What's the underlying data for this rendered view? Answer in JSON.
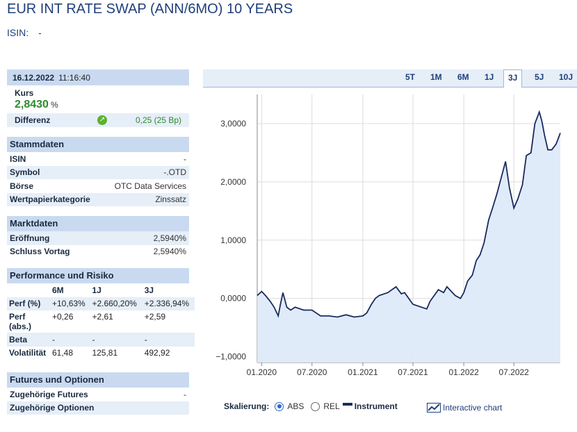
{
  "header": {
    "title": "EUR INT RATE SWAP (ANN/6MO) 10 YEARS",
    "isin_label": "ISIN:",
    "isin_value": "-"
  },
  "quote": {
    "date": "16.12.2022",
    "time": "11:16:40",
    "kurs_label": "Kurs",
    "kurs_value": "2,8430",
    "kurs_unit": "%",
    "diff_label": "Differenz",
    "diff_value": "0,25 (25 Bp)",
    "diff_icon": "arrow-up-right-icon",
    "diff_color": "#2d8a2d"
  },
  "stammdaten": {
    "title": "Stammdaten",
    "rows": [
      {
        "k": "ISIN",
        "v": "-"
      },
      {
        "k": "Symbol",
        "v": "-.OTD"
      },
      {
        "k": "Börse",
        "v": "OTC Data Services"
      },
      {
        "k": "Wertpapierkategorie",
        "v": "Zinssatz"
      }
    ]
  },
  "marktdaten": {
    "title": "Marktdaten",
    "rows": [
      {
        "k": "Eröffnung",
        "v": "2,5940%"
      },
      {
        "k": "Schluss Vortag",
        "v": "2,5940%"
      }
    ]
  },
  "performance": {
    "title": "Performance und Risiko",
    "cols": [
      "6M",
      "1J",
      "3J"
    ],
    "rows": [
      {
        "k": "Perf (%)",
        "v": [
          "+10,63%",
          "+2.660,20%",
          "+2.336,94%"
        ]
      },
      {
        "k": "Perf (abs.)",
        "v": [
          "+0,26",
          "+2,61",
          "+2,59"
        ]
      },
      {
        "k": "Beta",
        "v": [
          "-",
          "-",
          "-"
        ]
      },
      {
        "k": "Volatilität",
        "v": [
          "61,48",
          "125,81",
          "492,92"
        ]
      }
    ]
  },
  "futures": {
    "title": "Futures und Optionen",
    "rows": [
      {
        "k": "Zugehörige Futures",
        "v": "-"
      },
      {
        "k": "Zugehörige Optionen",
        "v": ""
      }
    ]
  },
  "tabs": {
    "items": [
      "5T",
      "1M",
      "6M",
      "1J",
      "3J",
      "5J",
      "10J"
    ],
    "active": "3J"
  },
  "controls": {
    "scale_label": "Skalierung:",
    "abs": "ABS",
    "rel": "REL",
    "selected": "ABS",
    "instrument_label": "Instrument",
    "interactive_label": "Interactive chart"
  },
  "colors": {
    "header_bg": "#c9daf0",
    "stripe_bg": "#e6eef8",
    "line": "#1a2a5e",
    "fill": "#dde9f8",
    "title": "#1f3f7a"
  },
  "chart_data": {
    "type": "area",
    "yticks": [
      "3,0000",
      "2,0000",
      "1,0000",
      "0,0000",
      "−1,0000"
    ],
    "ytick_values": [
      3,
      2,
      1,
      0,
      -1
    ],
    "xticks": [
      "01.2020",
      "07.2020",
      "01.2021",
      "07.2021",
      "01.2022",
      "07.2022"
    ],
    "ylim": [
      -1.1,
      3.5
    ],
    "grid": true,
    "series": [
      {
        "x": [
          "2019-12-16",
          "2020-01-01",
          "2020-01-15",
          "2020-02-01",
          "2020-02-15",
          "2020-03-01",
          "2020-03-09",
          "2020-03-18",
          "2020-04-01",
          "2020-04-15",
          "2020-05-01",
          "2020-06-01",
          "2020-07-01",
          "2020-08-01",
          "2020-09-01",
          "2020-10-01",
          "2020-11-01",
          "2020-12-01",
          "2021-01-01",
          "2021-01-15",
          "2021-02-01",
          "2021-02-15",
          "2021-03-01",
          "2021-04-01",
          "2021-05-01",
          "2021-05-20",
          "2021-06-01",
          "2021-07-01",
          "2021-08-01",
          "2021-08-20",
          "2021-09-01",
          "2021-10-01",
          "2021-10-20",
          "2021-11-01",
          "2021-12-01",
          "2021-12-20",
          "2022-01-01",
          "2022-01-15",
          "2022-02-01",
          "2022-02-15",
          "2022-03-01",
          "2022-03-15",
          "2022-04-01",
          "2022-04-15",
          "2022-05-01",
          "2022-06-01",
          "2022-06-15",
          "2022-07-01",
          "2022-07-15",
          "2022-08-01",
          "2022-08-15",
          "2022-09-01",
          "2022-09-15",
          "2022-10-01",
          "2022-10-10",
          "2022-10-20",
          "2022-11-01",
          "2022-11-15",
          "2022-12-01",
          "2022-12-16"
        ],
        "y": [
          0.05,
          0.12,
          0.05,
          -0.05,
          -0.15,
          -0.3,
          -0.1,
          0.1,
          -0.15,
          -0.2,
          -0.15,
          -0.2,
          -0.2,
          -0.3,
          -0.3,
          -0.32,
          -0.28,
          -0.32,
          -0.3,
          -0.25,
          -0.1,
          0.0,
          0.05,
          0.1,
          0.2,
          0.08,
          0.1,
          -0.1,
          -0.15,
          -0.18,
          -0.05,
          0.15,
          0.1,
          0.2,
          0.05,
          0.0,
          0.1,
          0.3,
          0.4,
          0.65,
          0.75,
          0.95,
          1.35,
          1.55,
          1.8,
          2.35,
          1.9,
          1.55,
          1.7,
          1.95,
          2.45,
          2.5,
          3.0,
          3.2,
          3.05,
          2.8,
          2.55,
          2.55,
          2.65,
          2.84
        ]
      }
    ]
  }
}
